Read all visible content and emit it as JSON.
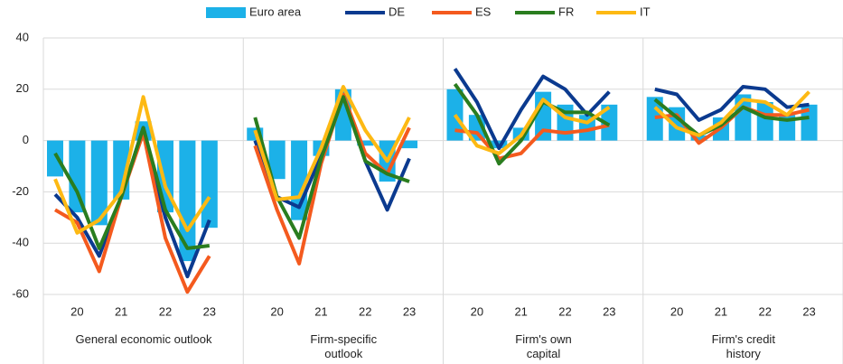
{
  "chart_data": {
    "type": "bar_line",
    "legend": "top",
    "grid": true,
    "ylim": [
      -60,
      40
    ],
    "yticks": [
      -60,
      -40,
      -20,
      0,
      20,
      40
    ],
    "categories": [
      null,
      "20",
      null,
      "21",
      null,
      "22",
      null,
      "23",
      null,
      "20",
      null,
      "21",
      null,
      "22",
      null,
      "23",
      null,
      "20",
      null,
      "21",
      null,
      "22",
      null,
      "23",
      null,
      "20",
      null,
      "21",
      null,
      "22",
      null,
      "23"
    ],
    "groups": [
      "General economic outlook",
      "Firm-specific\noutlook",
      "Firm's own\ncapital",
      "Firm's credit\nhistory"
    ],
    "series": [
      {
        "name": "Euro area",
        "type": "bar",
        "color": "#1cb1e8",
        "values": [
          -14,
          -28,
          -33,
          -23,
          7.5,
          -28,
          -47,
          -34,
          5,
          -15,
          -31,
          -6,
          20,
          -2,
          -16,
          -3,
          20,
          10,
          -3,
          5,
          19,
          14,
          10,
          14,
          17,
          13,
          2,
          9,
          18,
          15,
          10,
          14
        ]
      },
      {
        "name": "DE",
        "type": "line",
        "color": "#0b3a8f",
        "values": [
          -21,
          -30,
          -45,
          -22,
          5,
          -30,
          -53,
          -31,
          0,
          -22,
          -26,
          -6,
          18,
          -8,
          -27,
          -7,
          28,
          15,
          -3,
          12,
          25,
          20,
          10,
          19,
          20,
          18,
          8,
          12,
          21,
          20,
          13,
          14
        ]
      },
      {
        "name": "ES",
        "type": "line",
        "color": "#f45a1e",
        "values": [
          -27,
          -32,
          -51,
          -22,
          3,
          -38,
          -59,
          -45,
          -2,
          -27,
          -48,
          -9,
          18,
          -5,
          -13,
          5,
          4,
          3,
          -7,
          -5,
          4,
          3,
          4,
          6,
          9,
          10,
          -1,
          5,
          13,
          10,
          10,
          12
        ]
      },
      {
        "name": "FR",
        "type": "line",
        "color": "#2a7d1f",
        "values": [
          -5,
          -20,
          -42,
          -22,
          5,
          -27,
          -42,
          -41,
          9,
          -22,
          -38,
          -7,
          17,
          -8,
          -13,
          -16,
          22,
          10,
          -9,
          0,
          15,
          11,
          11,
          6,
          16,
          9,
          2,
          6,
          13,
          9,
          8,
          9
        ]
      },
      {
        "name": "IT",
        "type": "line",
        "color": "#fdb913",
        "values": [
          -15,
          -36,
          -31,
          -20,
          17,
          -18,
          -35,
          -22,
          4,
          -23,
          -22,
          -3,
          21,
          4,
          -8,
          9,
          10,
          -2,
          -5,
          2,
          16,
          9,
          7,
          13,
          13,
          5,
          2,
          7,
          16,
          15,
          10,
          19
        ]
      }
    ]
  }
}
